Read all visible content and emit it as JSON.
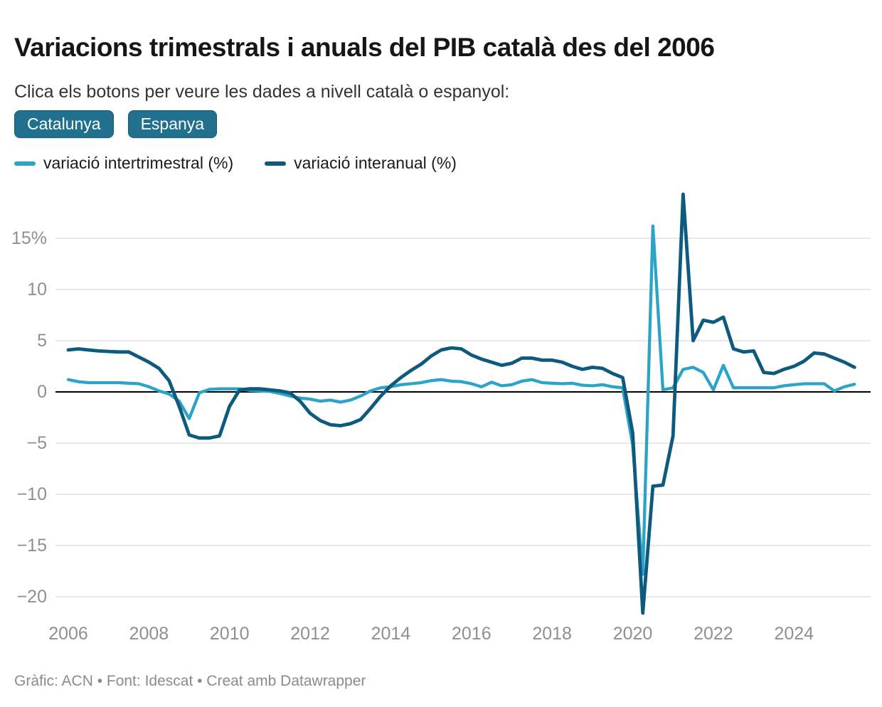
{
  "header": {
    "title": "Variacions trimestrals i anuals del PIB català des del 2006",
    "subtitle": "Clica els botons per veure les dades a nivell català o espanyol:"
  },
  "buttons": [
    {
      "label": "Catalunya"
    },
    {
      "label": "Espanya"
    }
  ],
  "theme": {
    "button_color": "#20708e",
    "button_text_color": "#ffffff",
    "grid_color": "#e0e0e0",
    "zero_line_color": "#000000",
    "axis_label_color": "#8f8f8f"
  },
  "footer": {
    "text": "Gràfic: ACN • Font: Idescat • Creat amb Datawrapper"
  },
  "chart_data": {
    "type": "line",
    "title": "Variacions trimestrals i anuals del PIB català des del 2006",
    "x_range": {
      "start": "2006-Q1",
      "end": "2025-Q3",
      "frequency": "quarterly",
      "points": 79
    },
    "x_ticks": [
      2006,
      2008,
      2010,
      2012,
      2014,
      2016,
      2018,
      2020,
      2022,
      2024
    ],
    "y_ticks": [
      {
        "label": "15%",
        "value": 15
      },
      {
        "label": "10",
        "value": 10
      },
      {
        "label": "5",
        "value": 5
      },
      {
        "label": "0",
        "value": 0
      },
      {
        "label": "−5",
        "value": -5
      },
      {
        "label": "−10",
        "value": -10
      },
      {
        "label": "−15",
        "value": -15
      },
      {
        "label": "−20",
        "value": -20
      }
    ],
    "ylim": [
      -22,
      20
    ],
    "grid": true,
    "legend_position": "top",
    "series": [
      {
        "id": "intertrimestral",
        "name": "variació intertrimestral (%)",
        "color": "#2ca3c9",
        "stroke_width": 4.3,
        "values": [
          1.2,
          1.0,
          0.9,
          0.9,
          0.9,
          0.9,
          0.85,
          0.8,
          0.5,
          0.1,
          -0.2,
          -0.9,
          -2.6,
          -0.1,
          0.25,
          0.3,
          0.3,
          0.3,
          0.15,
          0.1,
          0.05,
          -0.15,
          -0.4,
          -0.6,
          -0.7,
          -0.9,
          -0.8,
          -1.0,
          -0.8,
          -0.4,
          0.1,
          0.4,
          0.5,
          0.7,
          0.8,
          0.9,
          1.1,
          1.2,
          1.05,
          1.0,
          0.8,
          0.5,
          0.95,
          0.6,
          0.7,
          1.05,
          1.2,
          0.9,
          0.85,
          0.8,
          0.85,
          0.65,
          0.6,
          0.7,
          0.5,
          0.4,
          -5.2,
          -17.8,
          16.2,
          0.2,
          0.4,
          2.2,
          2.4,
          1.9,
          0.2,
          2.6,
          0.4,
          0.4,
          0.4,
          0.4,
          0.4,
          0.6,
          0.7,
          0.8,
          0.8,
          0.8,
          0.1,
          0.5,
          0.75
        ]
      },
      {
        "id": "interanual",
        "name": "variació interanual (%)",
        "color": "#0d5a7d",
        "stroke_width": 4.8,
        "values": [
          4.1,
          4.2,
          4.1,
          4.0,
          3.95,
          3.9,
          3.9,
          3.4,
          2.9,
          2.3,
          1.1,
          -1.4,
          -4.2,
          -4.5,
          -4.5,
          -4.3,
          -1.4,
          0.2,
          0.3,
          0.3,
          0.2,
          0.1,
          -0.1,
          -0.9,
          -2.1,
          -2.8,
          -3.2,
          -3.3,
          -3.1,
          -2.7,
          -1.6,
          -0.4,
          0.6,
          1.4,
          2.1,
          2.7,
          3.5,
          4.1,
          4.3,
          4.2,
          3.6,
          3.2,
          2.9,
          2.6,
          2.8,
          3.3,
          3.3,
          3.1,
          3.1,
          2.9,
          2.5,
          2.2,
          2.4,
          2.3,
          1.8,
          1.4,
          -4.0,
          -21.6,
          -9.2,
          -9.1,
          -4.3,
          19.3,
          5.0,
          7.0,
          6.8,
          7.3,
          4.2,
          3.9,
          4.0,
          1.9,
          1.8,
          2.2,
          2.5,
          3.0,
          3.8,
          3.7,
          3.3,
          2.9,
          2.4
        ]
      }
    ]
  }
}
